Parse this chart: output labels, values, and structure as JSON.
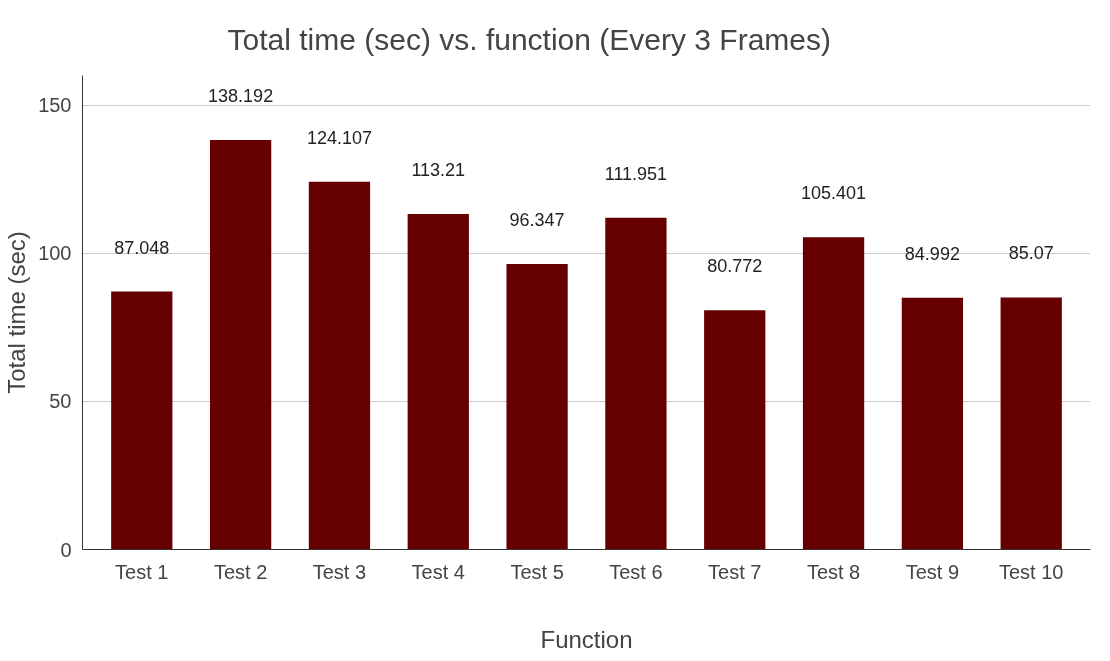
{
  "chart_data": {
    "type": "bar",
    "title": "Total time (sec) vs. function (Every 3 Frames)",
    "xlabel": "Function",
    "ylabel": "Total time (sec)",
    "categories": [
      "Test 1",
      "Test 2",
      "Test 3",
      "Test 4",
      "Test 5",
      "Test 6",
      "Test 7",
      "Test 8",
      "Test 9",
      "Test 10"
    ],
    "values": [
      87.048,
      138.192,
      124.107,
      113.21,
      96.347,
      111.951,
      80.772,
      105.401,
      84.992,
      85.07
    ],
    "color": "#660000",
    "ylim": [
      0,
      160
    ],
    "yticks": [
      0,
      50,
      100,
      150
    ],
    "grid": "y",
    "data_labels": true
  }
}
